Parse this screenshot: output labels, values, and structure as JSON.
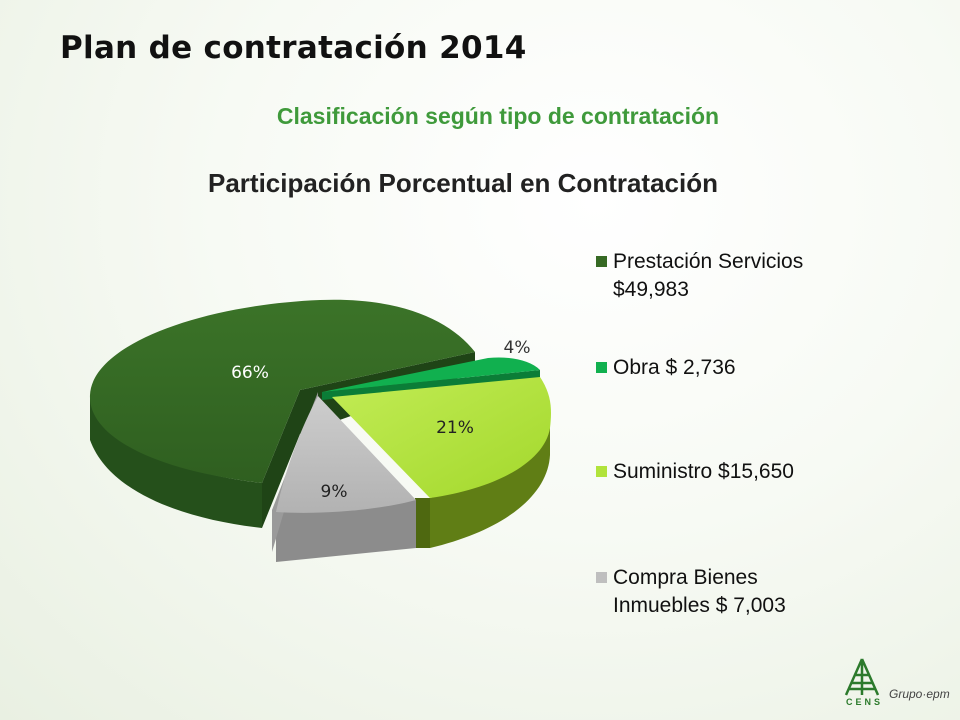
{
  "slide": {
    "title": "Plan de contratación 2014",
    "subtitle": "Clasificación según tipo de contratación"
  },
  "logo": {
    "word": "CENS",
    "group": "Grupo·epm"
  },
  "chart_data": {
    "type": "pie",
    "title": "Participación Porcentual en Contratación",
    "legend_position": "right",
    "series": [
      {
        "name": "Prestación Servicios",
        "value_label": "$49,983",
        "value": 49983,
        "percent_label": "66%",
        "color": "#376a24",
        "side_color": "#22481a"
      },
      {
        "name": "Obra",
        "value_label": "$ 2,736",
        "value": 2736,
        "percent_label": "4%",
        "color": "#11b04f",
        "side_color": "#0b7d37"
      },
      {
        "name": "Suministro",
        "value_label": "$15,650",
        "value": 15650,
        "percent_label": "21%",
        "color": "#b1e33b",
        "side_color": "#5f7d13"
      },
      {
        "name": "Compra Bienes Inmuebles",
        "value_label": "$ 7,003",
        "value": 7003,
        "percent_label": "9%",
        "color": "#bfbfbf",
        "side_color": "#8a8a8a"
      }
    ],
    "legend": [
      {
        "line1": "Prestación Servicios",
        "line2": "$49,983"
      },
      {
        "line1": "Obra $ 2,736",
        "line2": ""
      },
      {
        "line1": "Suministro $15,650",
        "line2": ""
      },
      {
        "line1": "Compra Bienes",
        "line2": "Inmuebles $ 7,003"
      }
    ]
  }
}
